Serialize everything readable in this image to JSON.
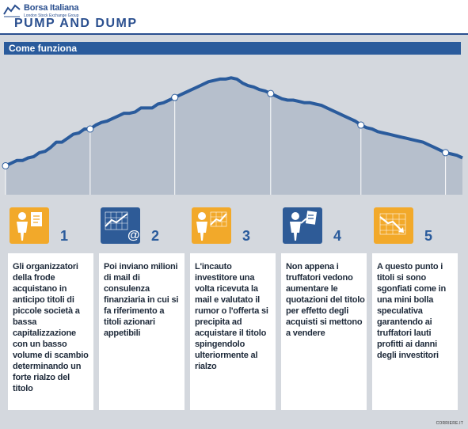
{
  "header": {
    "brand_name": "Borsa Italiana",
    "brand_sub": "London Stock Exchange Group",
    "title": "PUMP AND DUMP"
  },
  "section_title": "Come funziona",
  "colors": {
    "brand_blue": "#2a5b9c",
    "accent_orange": "#f2a92a",
    "area_fill": "#b6bfcc",
    "line": "#2a5b9c"
  },
  "chart_data": {
    "type": "area",
    "series": [
      {
        "values": [
          22,
          24,
          26,
          26,
          28,
          29,
          32,
          33,
          36,
          40,
          40,
          43,
          46,
          47,
          50,
          50,
          53,
          55,
          56,
          58,
          60,
          62,
          62,
          63,
          66,
          66,
          66,
          69,
          70,
          72,
          74,
          76,
          78,
          80,
          82,
          84,
          86,
          87,
          88,
          88,
          89,
          88,
          85,
          83,
          82,
          80,
          79,
          77,
          75,
          73,
          72,
          72,
          71,
          70,
          70,
          69,
          68,
          66,
          64,
          62,
          60,
          58,
          56,
          53,
          51,
          50,
          48,
          47,
          46,
          45,
          44,
          43,
          42,
          41,
          40,
          38,
          36,
          34,
          32,
          31,
          30,
          28
        ]
      }
    ],
    "markers": [
      0,
      15,
      30,
      47,
      63,
      78
    ]
  },
  "steps": [
    {
      "number": "1",
      "icon": "person-document-icon",
      "style": "orange",
      "text": "Gli organizzatori della frode acquistano in anticipo titoli di piccole società a bassa capitalizzazione con un basso volume di scambio determinando un forte rialzo del titolo"
    },
    {
      "number": "2",
      "icon": "chart-email-icon",
      "style": "blue",
      "text": "Poi inviano milioni di mail di consulenza finanziaria in cui si fa riferimento a titoli azionari appetibili"
    },
    {
      "number": "3",
      "icon": "investor-chart-icon",
      "style": "orange",
      "text": "L'incauto investitore una volta ricevuta la mail e valutato il rumor o l'offerta si precipita ad acquistare il titolo spingendolo ulteriormente al rialzo"
    },
    {
      "number": "4",
      "icon": "person-selling-icon",
      "style": "blue",
      "text": "Non appena i truffatori vedono aumentare le quotazioni del titolo per effetto degli acquisti si mettono a vendere"
    },
    {
      "number": "5",
      "icon": "falling-chart-icon",
      "style": "orange",
      "text": "A questo punto i titoli si sono sgonfiati come in una mini bolla speculativa garantendo ai truffatori lauti profitti ai danni degli investitori"
    }
  ],
  "credit": "CORRIERE.IT"
}
